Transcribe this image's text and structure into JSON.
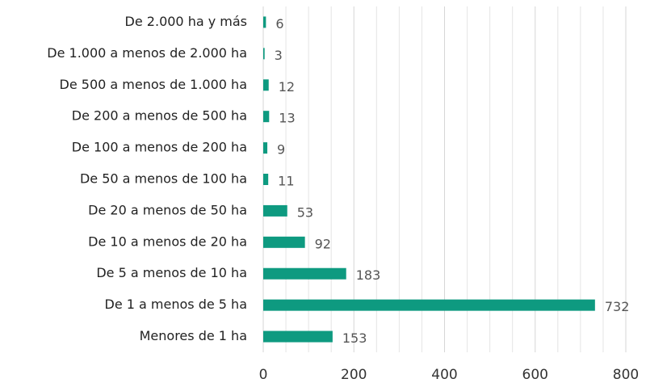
{
  "chart_data": {
    "type": "barh",
    "categories": [
      "De 2.000 ha y más",
      "De 1.000 a menos de 2.000 ha",
      "De 500 a menos de 1.000 ha",
      "De 200 a menos de 500 ha",
      "De 100 a menos de 200 ha",
      "De 50 a menos de 100 ha",
      "De 20 a menos de 50 ha",
      "De 10 a menos de 20 ha",
      "De 5 a menos de 10 ha",
      "De 1 a menos de 5 ha",
      "Menores de 1 ha"
    ],
    "values": [
      6,
      3,
      12,
      13,
      9,
      11,
      53,
      92,
      183,
      732,
      153
    ],
    "color": "#0e9a80",
    "xlim": [
      0,
      800
    ],
    "xticks": [
      0,
      200,
      400,
      600,
      800
    ],
    "minor_xticks": [
      50,
      100,
      150,
      250,
      300,
      350,
      450,
      500,
      550,
      650,
      700,
      750
    ],
    "grid": true
  }
}
